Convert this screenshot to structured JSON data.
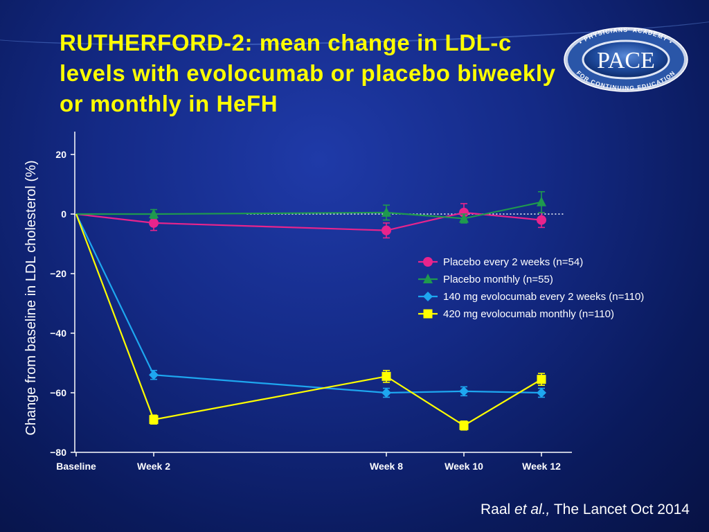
{
  "slide": {
    "title": "RUTHERFORD-2: mean change in LDL-c levels with evolocumab or placebo biweekly or monthly in HeFH",
    "citation_author": "Raal",
    "citation_etal": "et al.,",
    "citation_rest": "The Lancet Oct 2014"
  },
  "logo": {
    "text": "PACE",
    "ring_text": "PHYSICIANS' ACADEMY FOR CONTINUING EDUCATION"
  },
  "chart_data": {
    "type": "line",
    "title": "",
    "ylabel": "Change from baseline in LDL cholesterol (%)",
    "xlabel": "",
    "x_weeks": [
      0,
      2,
      8,
      10,
      12
    ],
    "categories": [
      "Baseline",
      "Week 2",
      "Week 8",
      "Week 10",
      "Week 12"
    ],
    "x_range": [
      0,
      12.5
    ],
    "ylim": [
      -80,
      20
    ],
    "yticks": [
      20,
      0,
      -20,
      -40,
      -60,
      -80
    ],
    "ytick_labels": [
      "20",
      "0",
      "−20",
      "−40",
      "−60",
      "−80"
    ],
    "reference_line": {
      "y": 0,
      "style": "dotted",
      "color": "#ffffff"
    },
    "legend_position": "right-middle",
    "series": [
      {
        "name": "Placebo every 2 weeks (n=54)",
        "color": "#e8248c",
        "marker": "circle",
        "values": [
          0,
          -3,
          -5.5,
          0.5,
          -2
        ],
        "errors": [
          0,
          2.5,
          2.5,
          3,
          2.5
        ]
      },
      {
        "name": "Placebo monthly (n=55)",
        "color": "#1f9a4e",
        "marker": "triangle",
        "values": [
          0,
          0,
          0.5,
          -1.5,
          4
        ],
        "errors": [
          0,
          1.5,
          2.5,
          1.5,
          3.5
        ]
      },
      {
        "name": "140 mg evolocumab every 2 weeks (n=110)",
        "color": "#1ea7f0",
        "marker": "diamond",
        "values": [
          0,
          -54,
          -60,
          -59.5,
          -60
        ],
        "errors": [
          0,
          1.5,
          1.5,
          1.5,
          1.5
        ]
      },
      {
        "name": "420 mg evolocumab monthly (n=110)",
        "color": "#ffff00",
        "marker": "square",
        "values": [
          0,
          -69,
          -54.5,
          -71,
          -55.5
        ],
        "errors": [
          0,
          1.5,
          2,
          1.5,
          2
        ]
      }
    ]
  }
}
